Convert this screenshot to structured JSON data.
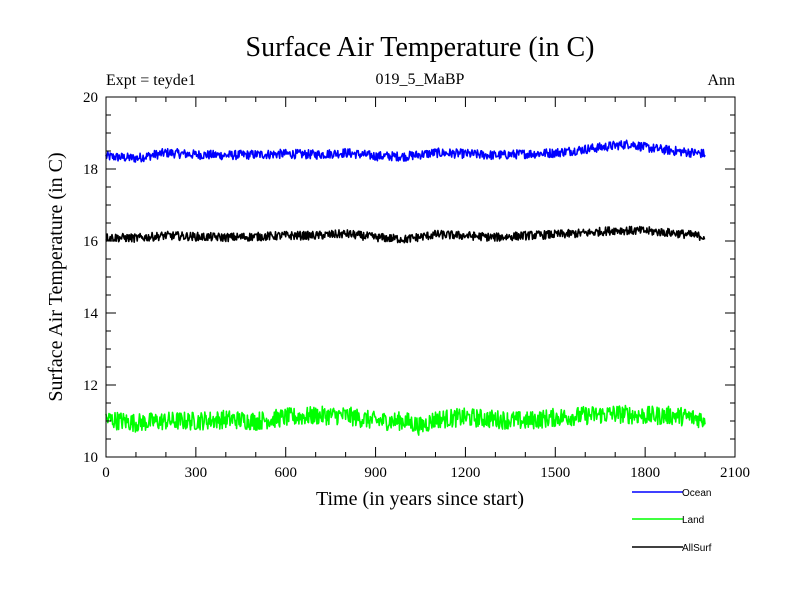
{
  "chart_data": {
    "type": "line",
    "title": "Surface Air Temperature (in C)",
    "subtitle": "019_5_MaBP",
    "left_label": "Expt = teyde1",
    "right_label": "Ann",
    "xlabel": "Time (in years since start)",
    "ylabel": "Surface Air Temperature (in C)",
    "xlim": [
      0,
      2100
    ],
    "ylim": [
      10,
      20
    ],
    "xticks": [
      0,
      300,
      600,
      900,
      1200,
      1500,
      1800,
      2100
    ],
    "yticks": [
      10,
      12,
      14,
      16,
      18,
      20
    ],
    "x_range": [
      0,
      2000
    ],
    "series": [
      {
        "name": "Ocean",
        "color": "#0000ff",
        "noise": 0.13,
        "anchors": [
          [
            0,
            18.35
          ],
          [
            100,
            18.3
          ],
          [
            200,
            18.45
          ],
          [
            300,
            18.4
          ],
          [
            400,
            18.38
          ],
          [
            500,
            18.4
          ],
          [
            600,
            18.42
          ],
          [
            700,
            18.4
          ],
          [
            800,
            18.45
          ],
          [
            900,
            18.36
          ],
          [
            1000,
            18.35
          ],
          [
            1100,
            18.45
          ],
          [
            1200,
            18.42
          ],
          [
            1300,
            18.38
          ],
          [
            1400,
            18.42
          ],
          [
            1500,
            18.45
          ],
          [
            1600,
            18.55
          ],
          [
            1700,
            18.65
          ],
          [
            1750,
            18.7
          ],
          [
            1800,
            18.6
          ],
          [
            1900,
            18.5
          ],
          [
            2000,
            18.42
          ]
        ]
      },
      {
        "name": "Land",
        "color": "#00ff00",
        "noise": 0.26,
        "anchors": [
          [
            0,
            11.05
          ],
          [
            100,
            10.95
          ],
          [
            200,
            11.0
          ],
          [
            300,
            11.0
          ],
          [
            400,
            11.05
          ],
          [
            500,
            11.0
          ],
          [
            600,
            11.1
          ],
          [
            700,
            11.15
          ],
          [
            800,
            11.15
          ],
          [
            900,
            11.0
          ],
          [
            1000,
            11.0
          ],
          [
            1050,
            10.85
          ],
          [
            1100,
            11.05
          ],
          [
            1200,
            11.1
          ],
          [
            1300,
            11.05
          ],
          [
            1400,
            11.0
          ],
          [
            1500,
            11.1
          ],
          [
            1600,
            11.15
          ],
          [
            1700,
            11.2
          ],
          [
            1800,
            11.15
          ],
          [
            1900,
            11.15
          ],
          [
            2000,
            11.05
          ]
        ]
      },
      {
        "name": "AllSurf",
        "color": "#000000",
        "noise": 0.12,
        "anchors": [
          [
            0,
            16.1
          ],
          [
            100,
            16.08
          ],
          [
            200,
            16.15
          ],
          [
            300,
            16.12
          ],
          [
            400,
            16.1
          ],
          [
            500,
            16.12
          ],
          [
            600,
            16.15
          ],
          [
            700,
            16.15
          ],
          [
            800,
            16.2
          ],
          [
            900,
            16.1
          ],
          [
            1000,
            16.05
          ],
          [
            1100,
            16.18
          ],
          [
            1200,
            16.15
          ],
          [
            1300,
            16.1
          ],
          [
            1400,
            16.15
          ],
          [
            1500,
            16.18
          ],
          [
            1600,
            16.22
          ],
          [
            1700,
            16.3
          ],
          [
            1800,
            16.28
          ],
          [
            1900,
            16.22
          ],
          [
            2000,
            16.12
          ]
        ]
      }
    ]
  }
}
